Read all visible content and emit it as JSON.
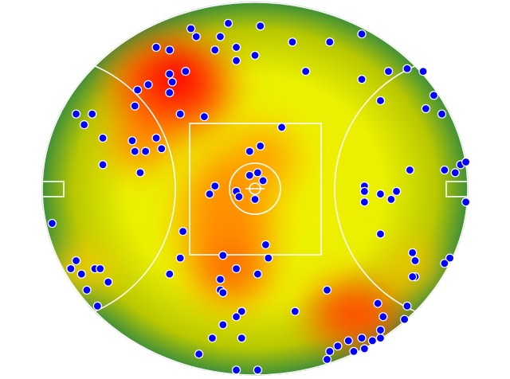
{
  "chart_data": {
    "type": "scatter",
    "color": "#0000ff",
    "xlim": [
      -80,
      80
    ],
    "ylim": [
      -70,
      70
    ],
    "x": [
      -24,
      -10,
      2,
      -22,
      -13,
      -37,
      -32,
      -15,
      -7,
      0,
      -7,
      14,
      28,
      40,
      19,
      40,
      50,
      57,
      63,
      -26,
      -32,
      -31,
      -40,
      -44,
      -32,
      -45,
      -28,
      -19,
      47,
      67,
      64,
      70,
      -67,
      -61,
      -64,
      -57,
      -46,
      -37,
      -45,
      -41,
      -35,
      -57,
      -43,
      10,
      -2,
      2,
      -2,
      1,
      3,
      -15,
      -17,
      -7,
      -6,
      0,
      41,
      41,
      41,
      47,
      51,
      53,
      58,
      71,
      75,
      77,
      79,
      79,
      -76,
      -27,
      47,
      4,
      -12,
      -28,
      5,
      59,
      60,
      73,
      71,
      -67,
      -69,
      -65,
      -60,
      -58,
      -55,
      -32,
      -7,
      1,
      -13,
      60,
      59,
      -63,
      -13,
      -12,
      27,
      -59,
      46,
      57,
      -5,
      15,
      -7,
      -12,
      48,
      56,
      -16,
      -5,
      47,
      47,
      40,
      35,
      31,
      28,
      27,
      37,
      44,
      41,
      -21,
      -7,
      1
    ],
    "y": [
      60,
      62,
      61,
      57,
      57,
      53,
      52,
      52,
      53,
      50,
      48,
      55,
      55,
      58,
      44,
      41,
      44,
      45,
      44,
      44,
      43,
      40,
      39,
      37,
      36,
      31,
      28,
      27,
      33,
      35,
      30,
      28,
      28,
      28,
      24,
      19,
      18,
      19,
      14,
      14,
      15,
      9,
      6,
      23,
      14,
      16,
      5,
      6,
      3,
      1,
      -2,
      -1,
      -3,
      -4,
      1,
      -1,
      -5,
      -2,
      -4,
      -1,
      7,
      7,
      6,
      9,
      10,
      -5,
      -13,
      -16,
      -17,
      -21,
      -25,
      -26,
      -26,
      -24,
      -27,
      -26,
      -28,
      -27,
      -30,
      -32,
      -30,
      -30,
      -35,
      -32,
      -30,
      -32,
      -34,
      -33,
      -33,
      -38,
      -38,
      -39,
      -38,
      -44,
      -43,
      -44,
      -46,
      -46,
      -48,
      -51,
      -48,
      -49,
      -56,
      -56,
      -53,
      -56,
      -56,
      -57,
      -59,
      -61,
      -64,
      -61,
      -57,
      -60,
      -62,
      -68,
      -68
    ]
  }
}
